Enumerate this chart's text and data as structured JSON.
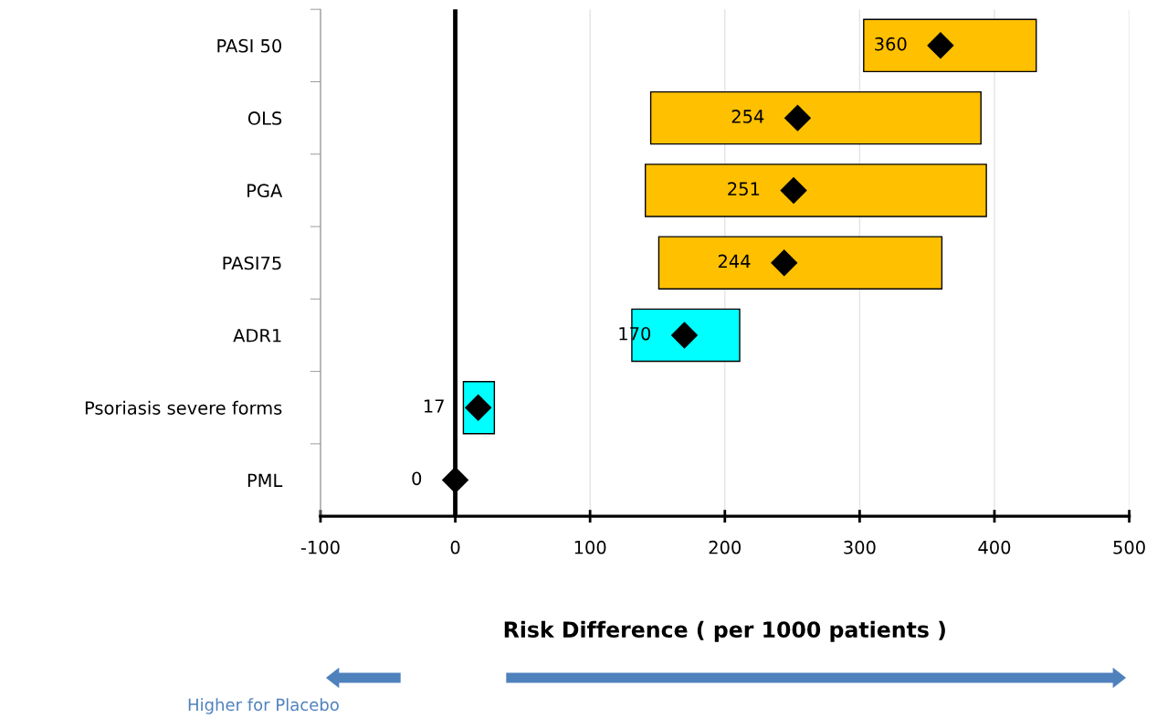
{
  "chart_data": {
    "type": "bar",
    "orientation": "horizontal",
    "categories": [
      "PASI 50",
      "OLS",
      "PGA",
      "PASI75",
      "ADR1",
      "Psoriasis severe forms",
      "PML"
    ],
    "series": [
      {
        "type": "bar",
        "base": [
          303,
          145,
          141,
          151,
          131,
          6,
          null
        ],
        "values": [
          128,
          245,
          253,
          210,
          80,
          23,
          null
        ],
        "colors": [
          "#ffc000",
          "#ffc000",
          "#ffc000",
          "#ffc000",
          "#00ffff",
          "#00ffff",
          "#00ffff"
        ]
      },
      {
        "type": "scatter",
        "values": [
          360,
          254,
          251,
          244,
          170,
          17,
          0
        ],
        "color": "#000000",
        "marker": "diamond",
        "data_labels": true
      }
    ],
    "xlabel": "Risk Difference ( per 1000 patients )",
    "xlim": [
      -100,
      500
    ],
    "xticks": [
      -100,
      0,
      100,
      200,
      300,
      400,
      500
    ],
    "grid": "x",
    "ref_lines": [
      {
        "axis": "x",
        "value": 0,
        "color": "#000000"
      }
    ],
    "annotations": [
      "Higher for Placebo"
    ]
  }
}
